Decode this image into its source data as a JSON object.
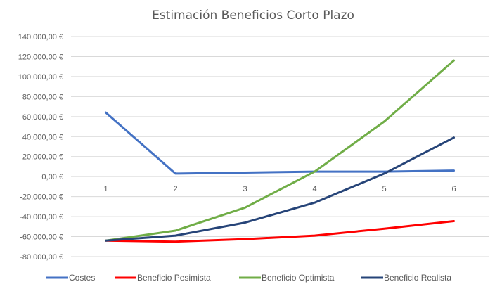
{
  "chart_data": {
    "type": "line",
    "title": "Estimación Beneficios Corto Plazo",
    "xlabel": "",
    "ylabel": "",
    "x": [
      "1",
      "2",
      "3",
      "4",
      "5",
      "6"
    ],
    "y_ticks": [
      "140.000,00 €",
      "120.000,00 €",
      "100.000,00 €",
      "80.000,00 €",
      "60.000,00 €",
      "40.000,00 €",
      "20.000,00 €",
      "0,00 €",
      "-20.000,00 €",
      "-40.000,00 €",
      "-60.000,00 €",
      "-80.000,00 €"
    ],
    "ylim": [
      -80000,
      140000
    ],
    "grid": true,
    "legend_position": "bottom",
    "series": [
      {
        "name": "Costes",
        "color": "#4472c4",
        "values": [
          64000,
          3000,
          4000,
          5000,
          5000,
          6000
        ]
      },
      {
        "name": "Beneficio Pesimista",
        "color": "#ff0000",
        "values": [
          -64000,
          -65000,
          -62500,
          -59000,
          -52000,
          -44500
        ]
      },
      {
        "name": "Beneficio Optimista",
        "color": "#70ad47",
        "values": [
          -64000,
          -54000,
          -31000,
          5000,
          55000,
          116000
        ]
      },
      {
        "name": "Beneficio Realista",
        "color": "#264478",
        "values": [
          -64000,
          -59000,
          -46000,
          -26000,
          3000,
          39000
        ]
      }
    ]
  }
}
